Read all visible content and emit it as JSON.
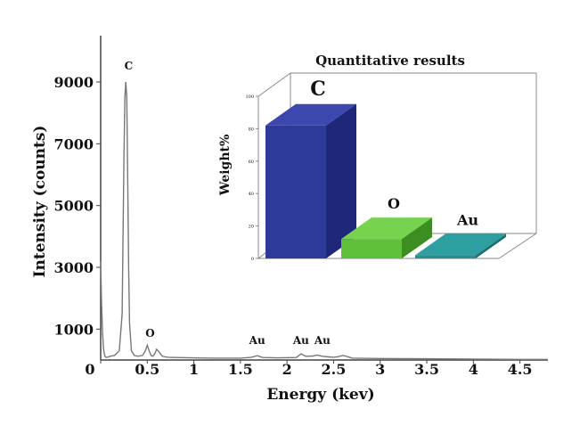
{
  "chart_data": [
    {
      "type": "line",
      "title": "",
      "xlabel": "Energy (kev)",
      "ylabel": "Intensity (counts)",
      "xlim": [
        0,
        4.8
      ],
      "ylim": [
        0,
        10500
      ],
      "x_ticks": [
        "0",
        "0.5",
        "1",
        "1.5",
        "2",
        "2.5",
        "3",
        "3.5",
        "4",
        "4.5"
      ],
      "x_tick_values": [
        0,
        0.5,
        1,
        1.5,
        2,
        2.5,
        3,
        3.5,
        4,
        4.5
      ],
      "y_ticks": [
        "1000",
        "3000",
        "5000",
        "7000",
        "9000"
      ],
      "y_tick_values": [
        1000,
        3000,
        5000,
        7000,
        9000
      ],
      "line_color": "#777777",
      "spectrum": {
        "x": [
          0.0,
          0.01,
          0.02,
          0.03,
          0.04,
          0.05,
          0.06,
          0.07,
          0.08,
          0.1,
          0.15,
          0.2,
          0.23,
          0.25,
          0.26,
          0.27,
          0.28,
          0.29,
          0.3,
          0.31,
          0.33,
          0.36,
          0.4,
          0.45,
          0.48,
          0.5,
          0.52,
          0.54,
          0.56,
          0.58,
          0.6,
          0.63,
          0.66,
          0.69,
          0.72,
          0.8,
          1.0,
          1.2,
          1.5,
          1.62,
          1.68,
          1.74,
          1.9,
          2.1,
          2.15,
          2.2,
          2.28,
          2.32,
          2.38,
          2.45,
          2.5,
          2.55,
          2.6,
          2.65,
          2.7,
          3.0,
          3.5,
          4.0,
          4.5,
          4.8
        ],
        "y": [
          3200,
          1800,
          900,
          400,
          180,
          100,
          90,
          90,
          100,
          120,
          150,
          300,
          1500,
          6500,
          8500,
          9000,
          8500,
          6000,
          3000,
          1200,
          300,
          150,
          120,
          150,
          300,
          480,
          300,
          150,
          120,
          200,
          350,
          250,
          130,
          100,
          90,
          80,
          70,
          60,
          60,
          90,
          140,
          80,
          70,
          80,
          200,
          120,
          130,
          160,
          120,
          100,
          90,
          110,
          150,
          110,
          60,
          50,
          40,
          30,
          20,
          20
        ]
      },
      "annotations": [
        {
          "text": "C",
          "x": 0.3,
          "y": 9400
        },
        {
          "text": "O",
          "x": 0.53,
          "y": 750
        },
        {
          "text": "Au",
          "x": 1.68,
          "y": 520
        },
        {
          "text": "Au",
          "x": 2.15,
          "y": 520
        },
        {
          "text": "Au",
          "x": 2.38,
          "y": 520
        }
      ]
    },
    {
      "type": "bar",
      "title": "Quantitative results",
      "ylabel": "Weight%",
      "categories": [
        "C",
        "O",
        "Au"
      ],
      "values": [
        82,
        12,
        2
      ],
      "ylim": [
        0,
        100
      ],
      "y_ticks": [
        "0",
        "20",
        "40",
        "60",
        "80",
        "100"
      ],
      "y_tick_values": [
        0,
        20,
        40,
        60,
        80,
        100
      ],
      "colors": {
        "C": {
          "front": "#2e3a9a",
          "side": "#1f2878",
          "top": "#3c48ad"
        },
        "O": {
          "front": "#5fc03a",
          "side": "#3c8e22",
          "top": "#77d24f"
        },
        "Au": {
          "front": "#2a8f90",
          "side": "#1f7071",
          "top": "#2e9fa0"
        }
      }
    }
  ]
}
